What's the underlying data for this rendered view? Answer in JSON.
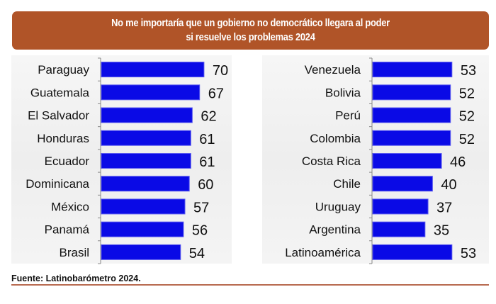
{
  "header": {
    "title_line1": "No me importaría que un gobierno no democrático llegara al poder",
    "title_line2": "si resuelve los problemas 2024"
  },
  "footer": {
    "source": "Fuente: Latinobarómetro 2024."
  },
  "colors": {
    "bar": "#0a0ae6",
    "bar_border": "#5a5af0",
    "header": "#b05428",
    "rule": "#b86a50"
  },
  "chart_data": [
    {
      "type": "bar",
      "orientation": "horizontal",
      "title": "No me importaría que un gobierno no democrático llegara al poder si resuelve los problemas 2024",
      "categories": [
        "Paraguay",
        "Guatemala",
        "El Salvador",
        "Honduras",
        "Ecuador",
        "Dominicana",
        "México",
        "Panamá",
        "Brasil"
      ],
      "values": [
        70,
        67,
        62,
        61,
        61,
        60,
        57,
        56,
        54
      ],
      "xlim": [
        0,
        70
      ]
    },
    {
      "type": "bar",
      "orientation": "horizontal",
      "title": "No me importaría que un gobierno no democrático llegara al poder si resuelve los problemas 2024",
      "categories": [
        "Venezuela",
        "Bolivia",
        "Perú",
        "Colombia",
        "Costa Rica",
        "Chile",
        "Uruguay",
        "Argentina",
        "Latinoamérica"
      ],
      "values": [
        53,
        52,
        52,
        52,
        46,
        40,
        37,
        35,
        53
      ],
      "xlim": [
        0,
        53
      ]
    }
  ]
}
